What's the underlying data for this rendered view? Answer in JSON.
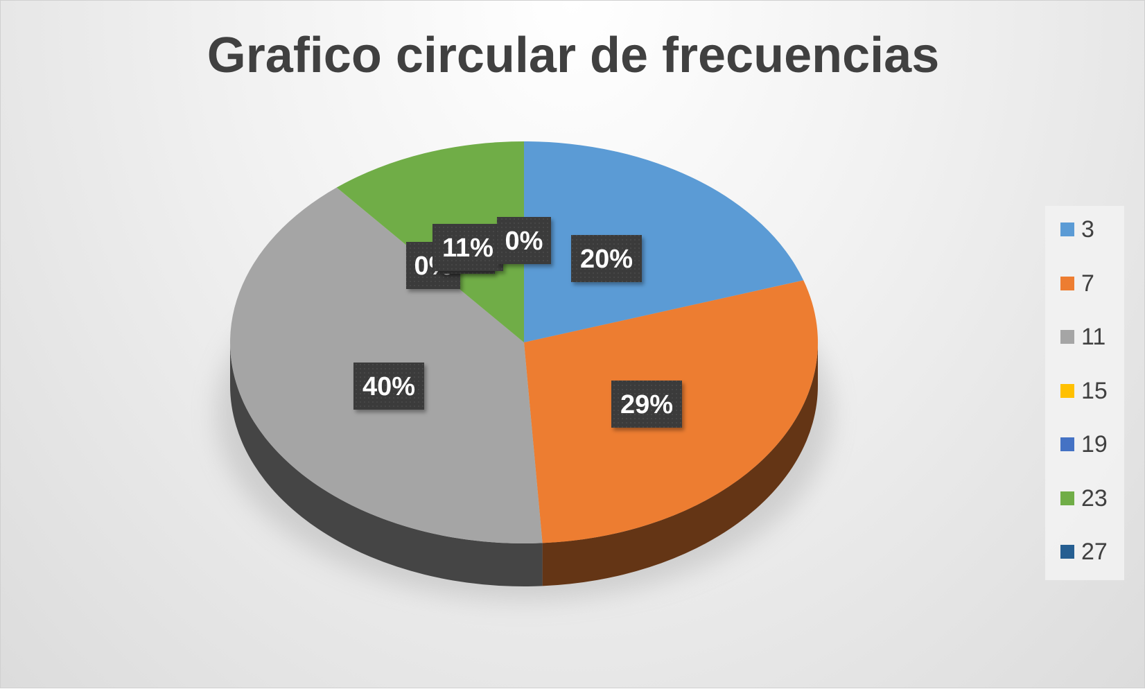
{
  "chart_data": {
    "type": "pie",
    "title": "Grafico circular de frecuencias",
    "categories": [
      "3",
      "7",
      "11",
      "15",
      "19",
      "23",
      "27"
    ],
    "values": [
      20,
      29,
      40,
      0,
      0,
      11,
      0
    ],
    "data_labels": [
      "20%",
      "29%",
      "40%",
      "0%",
      "0%",
      "11%",
      "0%"
    ],
    "colors": [
      "#5b9bd5",
      "#ed7d31",
      "#a5a5a5",
      "#ffc000",
      "#4472c4",
      "#70ad47",
      "#255e91"
    ],
    "legend_placement": "right",
    "style": "3d"
  }
}
